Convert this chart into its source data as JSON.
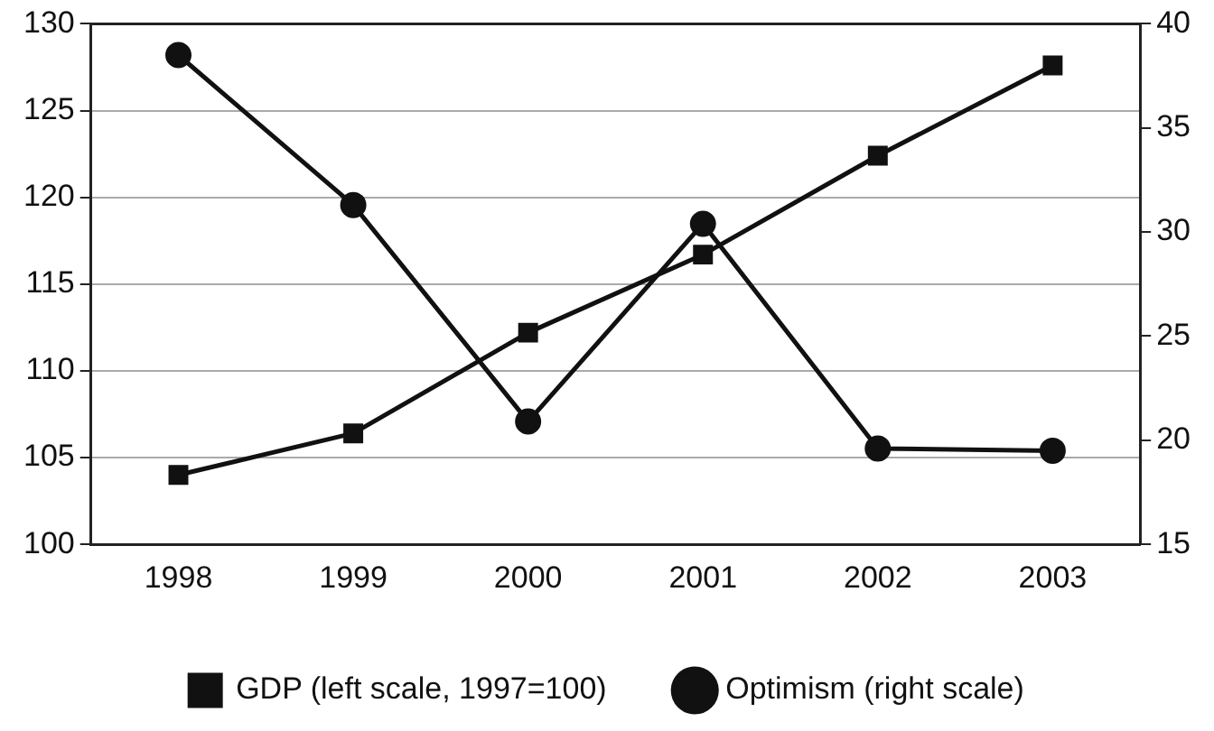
{
  "chart_data": {
    "type": "line",
    "categories": [
      "1998",
      "1999",
      "2000",
      "2001",
      "2002",
      "2003"
    ],
    "series": [
      {
        "name": "GDP (left scale, 1997=100)",
        "color": "#111111",
        "marker": "square",
        "values": [
          104.0,
          106.4,
          112.2,
          116.7,
          122.4,
          127.6
        ]
      },
      {
        "name": "Optimism (right scale)",
        "color": "#111111",
        "marker": "circle",
        "axis": "y2",
        "values": [
          38.5,
          31.3,
          20.9,
          30.4,
          19.6,
          19.5
        ]
      }
    ],
    "ylim": [
      100,
      130
    ],
    "yticks": [
      100,
      105,
      110,
      115,
      120,
      125,
      130
    ],
    "y2lim": [
      15,
      40
    ],
    "y2ticks": [
      15,
      20,
      25,
      30,
      35,
      40
    ],
    "grid": "y",
    "legend": "bottom",
    "line_style": "solid"
  }
}
